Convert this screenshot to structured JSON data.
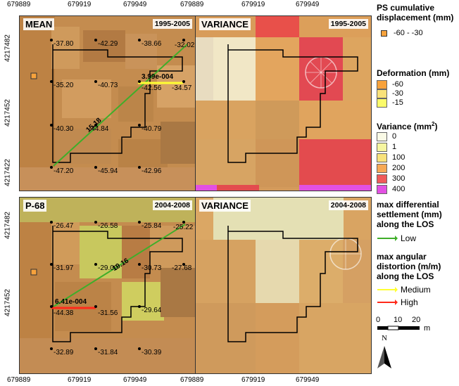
{
  "x_ticks": [
    "679889",
    "679919",
    "679949",
    "679889",
    "679919",
    "679949"
  ],
  "y_ticks_top": [
    "4217482",
    "4217452",
    "4217422"
  ],
  "y_ticks_bottom": [
    "4217482",
    "4217452"
  ],
  "panels": {
    "mean": {
      "title": "MEAN",
      "period": "1995-2005"
    },
    "var1": {
      "title": "VARIANCE",
      "period": "1995-2005"
    },
    "p68": {
      "title": "P-68",
      "period": "2004-2008"
    },
    "var2": {
      "title": "VARIANCE",
      "period": "2004-2008"
    }
  },
  "mean_points": [
    "-37.80",
    "-42.29",
    "-38.66",
    "-32.02",
    "-35.20",
    "-40.73",
    "-42.56",
    "-34.57",
    "-40.30",
    "-44.84",
    "-40.79",
    "-47.20",
    "-45.94",
    "-42.96"
  ],
  "mean_annotations": {
    "settlement": "15.18",
    "angular": "3.99e-004"
  },
  "p68_points": [
    "-26.47",
    "-26.58",
    "-25.84",
    "-25.22",
    "-31.97",
    "-29.00",
    "-30.73",
    "-27.68",
    "-44.38",
    "-31.56",
    "-29.64",
    "-32.89",
    "-31.84",
    "-30.39"
  ],
  "p68_annotations": {
    "settlement": "19.16",
    "angular": "6.41e-004"
  },
  "legend": {
    "ps_title": "PS cumulative displacement (mm)",
    "ps_range": "-60 - -30",
    "def_title": "Deformation (mm)",
    "def_items": [
      "-60",
      "-30",
      "-15"
    ],
    "var_title": "Variance (mm",
    "var_sup": "2",
    "var_close": ")",
    "var_items": [
      "0",
      "1",
      "100",
      "200",
      "300",
      "400"
    ],
    "settle_title": "max differential settlement (mm) along the LOS",
    "settle_low": "Low",
    "angular_title": "max angular distortion (m/m) along the LOS",
    "angular_medium": "Medium",
    "angular_high": "High",
    "scale_labels": [
      "0",
      "10",
      "20"
    ],
    "scale_unit": "m",
    "north": "N"
  },
  "colors": {
    "def_60": "#f7a23c",
    "def_30": "#f9e27a",
    "def_15": "#fbfb6a",
    "var_0": "#fafae6",
    "var_1": "#f5f5a0",
    "var_100": "#f8e27c",
    "var_200": "#f7a956",
    "var_300": "#f05a5a",
    "var_400": "#e250e2",
    "low_line": "#3fae2a",
    "medium_line": "#ffff33",
    "high_line": "#ff2a1a"
  }
}
